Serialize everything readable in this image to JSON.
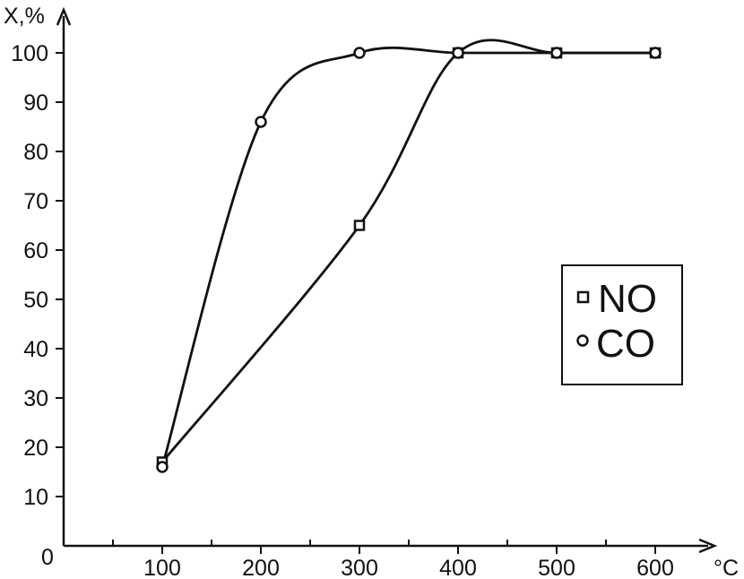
{
  "chart_data": {
    "type": "line",
    "title": "",
    "xlabel": "°C",
    "ylabel": "X,%",
    "x_origin_label": "0",
    "xlim": [
      0,
      650
    ],
    "ylim": [
      0,
      110
    ],
    "x_ticks": [
      100,
      200,
      300,
      400,
      500,
      600
    ],
    "x_minor_ticks": [
      50,
      150,
      250,
      350,
      450,
      550
    ],
    "y_ticks": [
      10,
      20,
      30,
      40,
      50,
      60,
      70,
      80,
      90,
      100
    ],
    "grid": false,
    "legend_position": "right",
    "series": [
      {
        "name": "NO",
        "marker": "square",
        "x": [
          100,
          300,
          400,
          500,
          600
        ],
        "y": [
          17,
          65,
          100,
          100,
          100
        ]
      },
      {
        "name": "CO",
        "marker": "circle",
        "x": [
          100,
          200,
          300,
          400,
          500,
          600
        ],
        "y": [
          16,
          86,
          100,
          100,
          100,
          100
        ]
      }
    ],
    "colors": {
      "line": "#111111",
      "background": "#ffffff"
    }
  }
}
